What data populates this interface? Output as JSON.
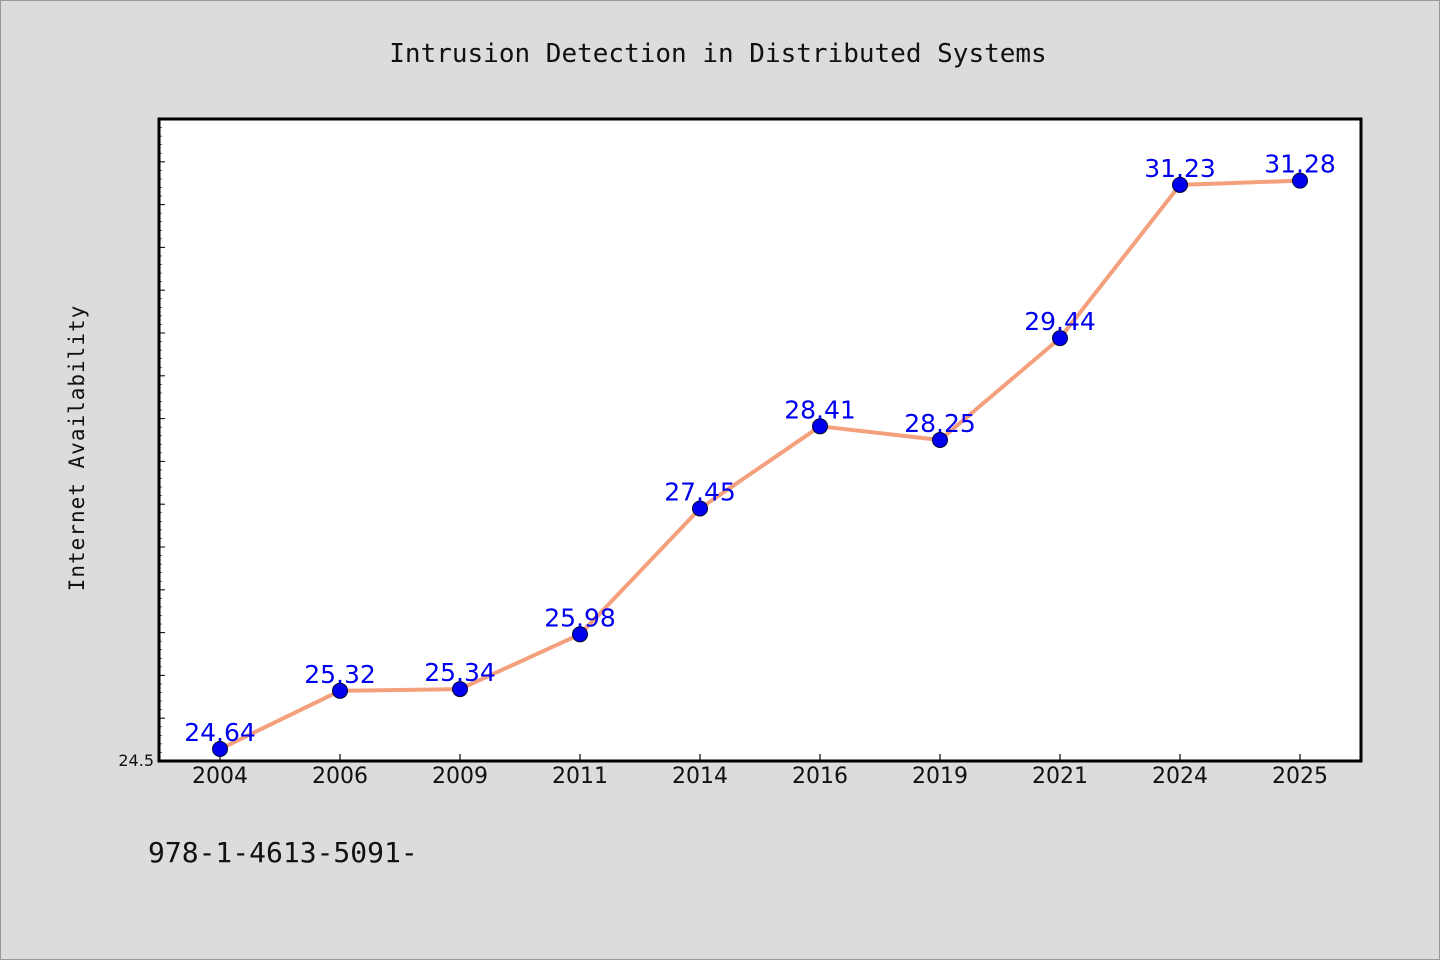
{
  "chart_data": {
    "type": "line",
    "title": "Intrusion Detection in Distributed Systems",
    "xlabel": "",
    "ylabel": "Internet Availability",
    "categories": [
      "2004",
      "2006",
      "2009",
      "2011",
      "2014",
      "2016",
      "2019",
      "2021",
      "2024",
      "2025"
    ],
    "series": [
      {
        "values": [
          24.64,
          25.32,
          25.34,
          25.98,
          27.45,
          28.41,
          28.25,
          29.44,
          31.23,
          31.28
        ]
      }
    ],
    "value_labels": [
      "24.64",
      "25.32",
      "25.34",
      "25.98",
      "27.45",
      "28.41",
      "28.25",
      "29.44",
      "31.23",
      "31.28"
    ],
    "ylim": [
      24.5,
      32.0
    ],
    "y_tick_labels": [
      "24.5"
    ],
    "grid": false,
    "line_color": "#f4a07c",
    "marker_color": "#0000ee",
    "label_color": "#0000ee"
  },
  "footer": "978-1-4613-5091-"
}
